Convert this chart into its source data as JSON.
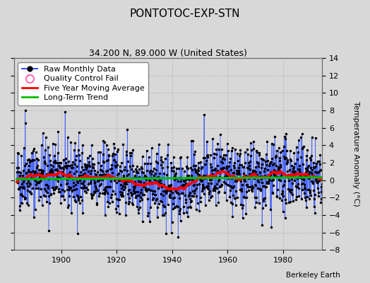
{
  "title": "PONTOTOC-EXP-STN",
  "subtitle": "34.200 N, 89.000 W (United States)",
  "ylabel": "Temperature Anomaly (°C)",
  "attribution": "Berkeley Earth",
  "start_year": 1884,
  "end_year": 1993,
  "ylim": [
    -8,
    14
  ],
  "yticks": [
    -8,
    -6,
    -4,
    -2,
    0,
    2,
    4,
    6,
    8,
    10,
    12,
    14
  ],
  "xticks": [
    1900,
    1920,
    1940,
    1960,
    1980
  ],
  "seed": 42,
  "bg_color": "#d8d8d8",
  "plot_bg_color": "#d8d8d8",
  "grid_color": "#bbbbbb",
  "raw_line_color": "#3355ff",
  "raw_marker_color": "#000000",
  "moving_avg_color": "#ff0000",
  "trend_color": "#00bb00",
  "qc_fail_color": "#ff69b4",
  "legend_items": [
    "Raw Monthly Data",
    "Quality Control Fail",
    "Five Year Moving Average",
    "Long-Term Trend"
  ],
  "title_fontsize": 11,
  "subtitle_fontsize": 9,
  "axis_fontsize": 8,
  "legend_fontsize": 8
}
